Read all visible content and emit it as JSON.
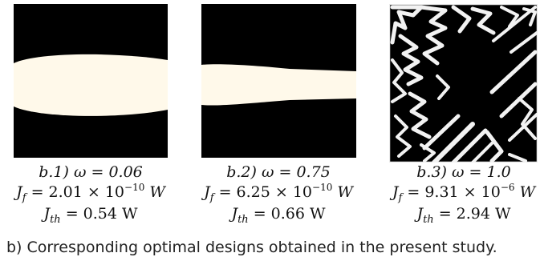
{
  "figure": {
    "colors": {
      "background": "#000000",
      "material": "#fff9ea"
    },
    "panels": [
      {
        "label": "b.1)",
        "omega_text": "ω = 0.06",
        "jf_symbol": "J",
        "jf_sub": "f",
        "jf_mantissa": "= 2.01 × 10",
        "jf_exp": "−10",
        "jf_unit": "W",
        "jth_symbol": "J",
        "jth_sub": "th",
        "jth_value": "= 0.54 W"
      },
      {
        "label": "b.2)",
        "omega_text": "ω = 0.75",
        "jf_symbol": "J",
        "jf_sub": "f",
        "jf_mantissa": "= 6.25 × 10",
        "jf_exp": "−10",
        "jf_unit": "W",
        "jth_symbol": "J",
        "jth_sub": "th",
        "jth_value": "= 0.66 W"
      },
      {
        "label": "b.3)",
        "omega_text": "ω = 1.0",
        "jf_symbol": "J",
        "jf_sub": "f",
        "jf_mantissa": "= 9.31 × 10",
        "jf_exp": "−6",
        "jf_unit": "W",
        "jth_symbol": "J",
        "jth_sub": "th",
        "jth_value": "= 2.94 W"
      }
    ],
    "caption": "b)  Corresponding optimal designs obtained in the present study."
  }
}
